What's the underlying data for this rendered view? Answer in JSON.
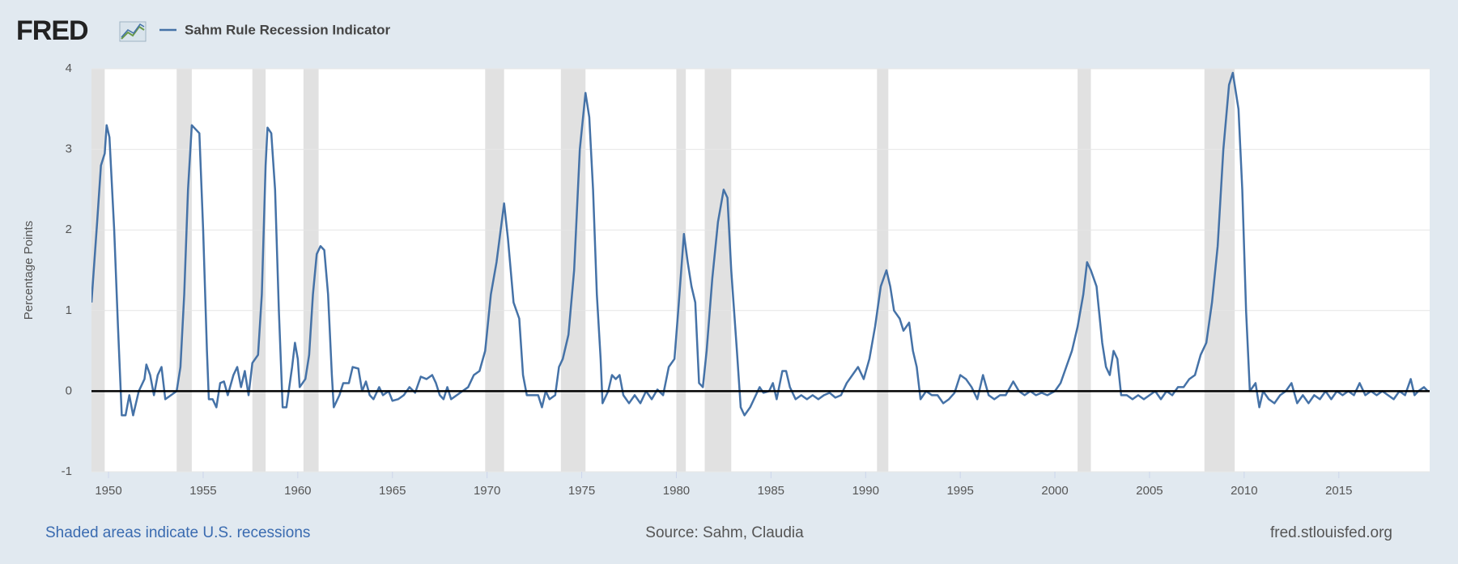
{
  "logo": "FRED",
  "chart_data": {
    "type": "line",
    "ylabel": "Percentage Points",
    "x": [
      1949.1,
      1949.4,
      1949.6,
      1949.8,
      1949.9,
      1950.05,
      1950.3,
      1950.5,
      1950.7,
      1950.9,
      1951.1,
      1951.3,
      1951.6,
      1951.9,
      1952.0,
      1952.2,
      1952.4,
      1952.6,
      1952.8,
      1953.0,
      1953.3,
      1953.6,
      1953.8,
      1954.0,
      1954.2,
      1954.4,
      1954.6,
      1954.8,
      1955.0,
      1955.2,
      1955.3,
      1955.5,
      1955.7,
      1955.9,
      1956.1,
      1956.3,
      1956.6,
      1956.8,
      1957.0,
      1957.2,
      1957.4,
      1957.6,
      1957.9,
      1958.1,
      1958.3,
      1958.4,
      1958.6,
      1958.8,
      1959.0,
      1959.2,
      1959.4,
      1959.7,
      1959.85,
      1960.0,
      1960.1,
      1960.4,
      1960.6,
      1960.8,
      1961.0,
      1961.2,
      1961.4,
      1961.6,
      1961.8,
      1961.9,
      1962.2,
      1962.4,
      1962.7,
      1962.9,
      1963.2,
      1963.4,
      1963.6,
      1963.8,
      1964.0,
      1964.3,
      1964.5,
      1964.8,
      1965.0,
      1965.3,
      1965.6,
      1965.9,
      1966.2,
      1966.5,
      1966.8,
      1967.1,
      1967.3,
      1967.5,
      1967.7,
      1967.9,
      1968.1,
      1968.4,
      1968.7,
      1969.0,
      1969.3,
      1969.6,
      1969.9,
      1970.2,
      1970.5,
      1970.9,
      1971.1,
      1971.4,
      1971.7,
      1971.9,
      1972.1,
      1972.4,
      1972.7,
      1972.9,
      1973.1,
      1973.3,
      1973.6,
      1973.8,
      1974.0,
      1974.3,
      1974.6,
      1974.9,
      1975.2,
      1975.4,
      1975.6,
      1975.8,
      1976.0,
      1976.1,
      1976.4,
      1976.6,
      1976.8,
      1977.0,
      1977.2,
      1977.5,
      1977.8,
      1978.1,
      1978.4,
      1978.7,
      1979.0,
      1979.3,
      1979.6,
      1979.9,
      1980.1,
      1980.4,
      1980.6,
      1980.8,
      1981.0,
      1981.2,
      1981.4,
      1981.6,
      1981.9,
      1982.2,
      1982.5,
      1982.7,
      1982.9,
      1983.2,
      1983.4,
      1983.6,
      1983.9,
      1984.1,
      1984.4,
      1984.6,
      1984.9,
      1985.1,
      1985.3,
      1985.6,
      1985.8,
      1986.0,
      1986.3,
      1986.6,
      1986.9,
      1987.2,
      1987.5,
      1987.8,
      1988.1,
      1988.4,
      1988.7,
      1989.0,
      1989.3,
      1989.6,
      1989.9,
      1990.2,
      1990.5,
      1990.8,
      1991.1,
      1991.3,
      1991.5,
      1991.8,
      1992.0,
      1992.3,
      1992.5,
      1992.7,
      1992.9,
      1993.2,
      1993.5,
      1993.8,
      1994.1,
      1994.4,
      1994.7,
      1995.0,
      1995.3,
      1995.6,
      1995.9,
      1996.2,
      1996.5,
      1996.8,
      1997.1,
      1997.4,
      1997.8,
      1998.1,
      1998.4,
      1998.7,
      1999.0,
      1999.3,
      1999.6,
      2000.0,
      2000.3,
      2000.6,
      2000.9,
      2001.2,
      2001.5,
      2001.7,
      2001.9,
      2002.2,
      2002.5,
      2002.7,
      2002.9,
      2003.1,
      2003.3,
      2003.5,
      2003.8,
      2004.1,
      2004.4,
      2004.7,
      2005.0,
      2005.3,
      2005.6,
      2005.9,
      2006.2,
      2006.5,
      2006.8,
      2007.1,
      2007.4,
      2007.7,
      2008.0,
      2008.3,
      2008.6,
      2008.9,
      2009.2,
      2009.4,
      2009.7,
      2009.9,
      2010.1,
      2010.3,
      2010.6,
      2010.8,
      2011.0,
      2011.3,
      2011.6,
      2011.9,
      2012.2,
      2012.5,
      2012.8,
      2013.1,
      2013.4,
      2013.7,
      2014.0,
      2014.3,
      2014.6,
      2014.9,
      2015.2,
      2015.5,
      2015.8,
      2016.1,
      2016.4,
      2016.7,
      2017.0,
      2017.3,
      2017.6,
      2017.9,
      2018.2,
      2018.5,
      2018.8,
      2019.0,
      2019.2,
      2019.5,
      2019.7
    ],
    "series": [
      {
        "name": "Sahm Rule Recession Indicator",
        "color": "#4572a7",
        "values": [
          1.1,
          2.1,
          2.8,
          2.95,
          3.3,
          3.15,
          2.0,
          0.8,
          -0.3,
          -0.3,
          -0.05,
          -0.3,
          0.0,
          0.15,
          0.33,
          0.2,
          -0.05,
          0.2,
          0.3,
          -0.1,
          -0.05,
          0.0,
          0.3,
          1.2,
          2.5,
          3.3,
          3.25,
          3.2,
          2.0,
          0.5,
          -0.1,
          -0.1,
          -0.2,
          0.1,
          0.12,
          -0.05,
          0.2,
          0.3,
          0.05,
          0.25,
          -0.05,
          0.35,
          0.45,
          1.2,
          2.8,
          3.27,
          3.2,
          2.5,
          1.0,
          -0.2,
          -0.2,
          0.3,
          0.6,
          0.4,
          0.05,
          0.15,
          0.45,
          1.2,
          1.7,
          1.8,
          1.75,
          1.2,
          0.2,
          -0.2,
          -0.05,
          0.1,
          0.1,
          0.3,
          0.28,
          0.0,
          0.12,
          -0.05,
          -0.1,
          0.05,
          -0.05,
          0.0,
          -0.12,
          -0.1,
          -0.05,
          0.05,
          -0.02,
          0.18,
          0.15,
          0.2,
          0.1,
          -0.05,
          -0.1,
          0.05,
          -0.1,
          -0.05,
          0.0,
          0.05,
          0.2,
          0.25,
          0.5,
          1.2,
          1.6,
          2.33,
          1.9,
          1.1,
          0.9,
          0.2,
          -0.05,
          -0.05,
          -0.05,
          -0.2,
          0.0,
          -0.1,
          -0.05,
          0.3,
          0.4,
          0.7,
          1.5,
          3.0,
          3.7,
          3.4,
          2.5,
          1.2,
          0.4,
          -0.15,
          0.0,
          0.2,
          0.15,
          0.2,
          -0.05,
          -0.15,
          -0.05,
          -0.15,
          0.0,
          -0.1,
          0.02,
          -0.05,
          0.3,
          0.4,
          1.0,
          1.95,
          1.6,
          1.3,
          1.1,
          0.1,
          0.05,
          0.5,
          1.4,
          2.1,
          2.5,
          2.4,
          1.5,
          0.5,
          -0.2,
          -0.3,
          -0.2,
          -0.1,
          0.05,
          -0.02,
          0.0,
          0.1,
          -0.1,
          0.25,
          0.25,
          0.05,
          -0.1,
          -0.05,
          -0.1,
          -0.05,
          -0.1,
          -0.05,
          -0.02,
          -0.08,
          -0.05,
          0.1,
          0.2,
          0.3,
          0.15,
          0.4,
          0.8,
          1.3,
          1.5,
          1.3,
          1.0,
          0.9,
          0.75,
          0.85,
          0.5,
          0.3,
          -0.1,
          0.0,
          -0.05,
          -0.05,
          -0.15,
          -0.1,
          -0.02,
          0.2,
          0.15,
          0.05,
          -0.1,
          0.2,
          -0.05,
          -0.1,
          -0.05,
          -0.05,
          0.12,
          0.0,
          -0.05,
          0.0,
          -0.05,
          -0.02,
          -0.05,
          0.0,
          0.1,
          0.3,
          0.5,
          0.8,
          1.2,
          1.6,
          1.5,
          1.3,
          0.6,
          0.3,
          0.2,
          0.5,
          0.4,
          -0.05,
          -0.05,
          -0.1,
          -0.05,
          -0.1,
          -0.05,
          0.0,
          -0.1,
          0.0,
          -0.05,
          0.05,
          0.05,
          0.15,
          0.2,
          0.45,
          0.6,
          1.1,
          1.8,
          3.0,
          3.8,
          3.95,
          3.5,
          2.5,
          1.0,
          0.0,
          0.1,
          -0.2,
          0.0,
          -0.1,
          -0.15,
          -0.05,
          0.0,
          0.1,
          -0.15,
          -0.05,
          -0.15,
          -0.05,
          -0.1,
          0.0,
          -0.1,
          0.0,
          -0.05,
          0.0,
          -0.05,
          0.1,
          -0.05,
          0.0,
          -0.05,
          0.0,
          -0.05,
          -0.1,
          0.0,
          -0.05,
          0.15,
          -0.05,
          0.0,
          0.05,
          0.0
        ]
      }
    ],
    "recessions": [
      [
        1948.9,
        1949.8
      ],
      [
        1953.6,
        1954.4
      ],
      [
        1957.6,
        1958.3
      ],
      [
        1960.3,
        1961.1
      ],
      [
        1969.9,
        1970.9
      ],
      [
        1973.9,
        1975.2
      ],
      [
        1980.0,
        1980.5
      ],
      [
        1981.5,
        1982.9
      ],
      [
        1990.6,
        1991.2
      ],
      [
        2001.2,
        2001.9
      ],
      [
        2007.9,
        2009.5
      ]
    ],
    "recession_color": "#e1e1e1",
    "xlim": [
      1949.1,
      2019.8
    ],
    "xticks": [
      1950,
      1955,
      1960,
      1965,
      1970,
      1975,
      1980,
      1985,
      1990,
      1995,
      2000,
      2005,
      2010,
      2015
    ],
    "ylim": [
      -1,
      4
    ],
    "yticks": [
      -1,
      0,
      1,
      2,
      3,
      4
    ],
    "grid": true
  },
  "footer": {
    "recessions_note": "Shaded areas indicate U.S. recessions",
    "source": "Source: Sahm, Claudia",
    "url": "fred.stlouisfed.org"
  }
}
